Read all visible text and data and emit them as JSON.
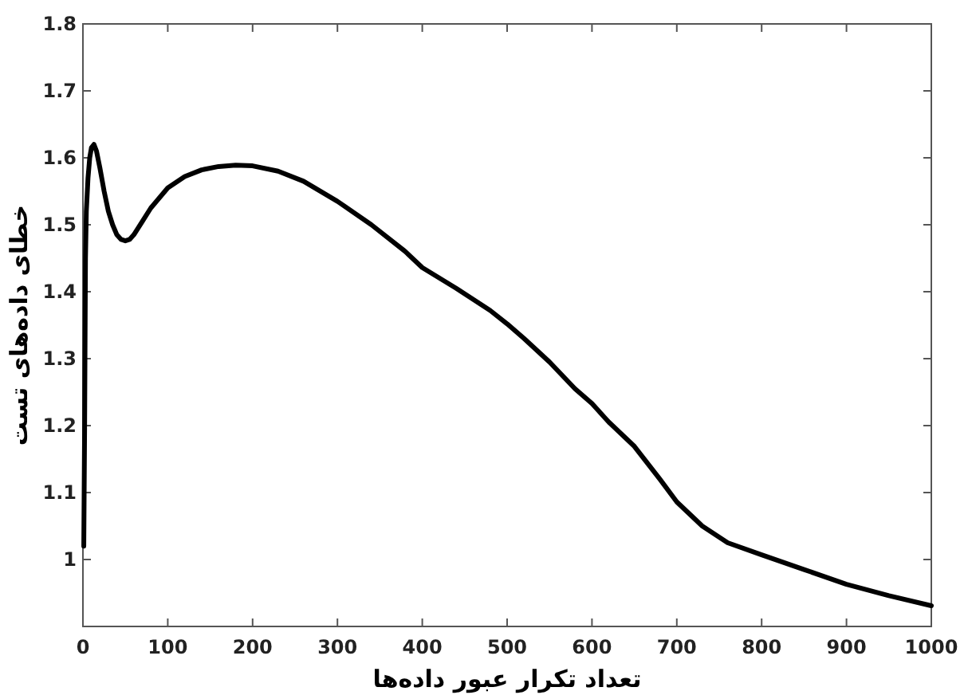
{
  "chart_data": {
    "type": "line",
    "xlabel": "تعداد تکرار عبور داده‌ها",
    "ylabel": "خطای داده‌های تست",
    "series": [
      {
        "color": "#000000",
        "x": [
          1,
          2,
          3,
          4,
          6,
          8,
          10,
          13,
          16,
          20,
          25,
          30,
          35,
          40,
          45,
          50,
          55,
          60,
          70,
          80,
          100,
          120,
          140,
          160,
          180,
          200,
          230,
          260,
          300,
          340,
          380,
          400,
          440,
          480,
          500,
          520,
          550,
          580,
          600,
          620,
          650,
          680,
          700,
          730,
          760,
          800,
          850,
          900,
          950,
          1000
        ],
        "values": [
          1.02,
          1.2,
          1.45,
          1.52,
          1.57,
          1.6,
          1.615,
          1.62,
          1.61,
          1.585,
          1.55,
          1.52,
          1.5,
          1.485,
          1.478,
          1.476,
          1.478,
          1.485,
          1.505,
          1.525,
          1.555,
          1.572,
          1.582,
          1.587,
          1.589,
          1.588,
          1.58,
          1.565,
          1.535,
          1.5,
          1.46,
          1.436,
          1.405,
          1.372,
          1.352,
          1.33,
          1.295,
          1.255,
          1.233,
          1.205,
          1.169,
          1.12,
          1.086,
          1.05,
          1.025,
          1.007,
          0.985,
          0.963,
          0.946,
          0.931
        ]
      }
    ],
    "xlim": [
      0,
      1000
    ],
    "xticks": [
      0,
      100,
      200,
      300,
      400,
      500,
      600,
      700,
      800,
      900,
      1000
    ],
    "ylim": [
      0.9,
      1.8
    ],
    "yticks": [
      {
        "value": 0.9,
        "label": null
      },
      1,
      1.1,
      1.2,
      1.3,
      1.4,
      1.5,
      1.6,
      1.7,
      1.8
    ],
    "grid": false,
    "marker": "none",
    "line_style": "solid"
  }
}
